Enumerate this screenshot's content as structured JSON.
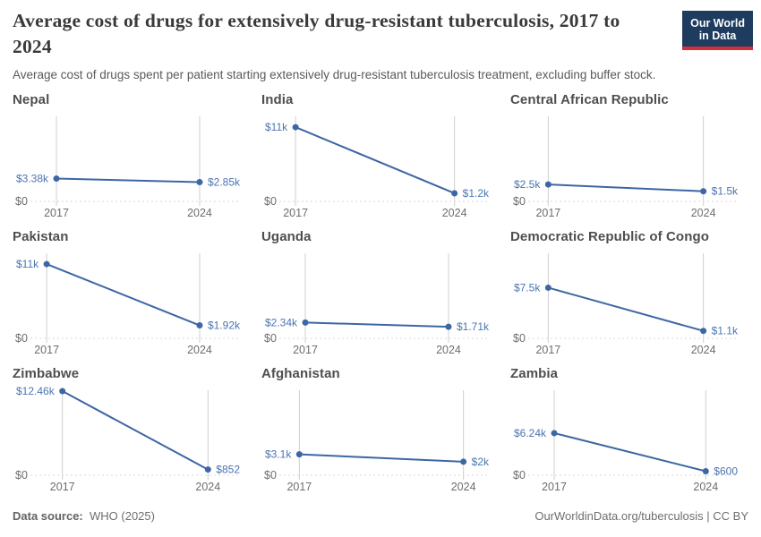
{
  "header": {
    "title": "Average cost of drugs for extensively drug-resistant tuberculosis, 2017 to 2024",
    "subtitle": "Average cost of drugs spent per patient starting extensively drug-resistant tuberculosis treatment, excluding buffer stock."
  },
  "logo": {
    "line1": "Our World",
    "line2": "in Data",
    "bg_color": "#1d3c60",
    "accent_color": "#cf3137"
  },
  "footer": {
    "source_label": "Data source:",
    "source": "WHO (2025)",
    "right": "OurWorldinData.org/tuberculosis | CC BY"
  },
  "chart_data": {
    "type": "line",
    "layout": "3x3 small multiples, shared y scale",
    "x": [
      2017,
      2024
    ],
    "x_tick_labels": [
      "2017",
      "2024"
    ],
    "ylim": [
      0,
      12600
    ],
    "zero_label": "$0",
    "grid": "vertical lines at each year, dashed zero line",
    "colors": {
      "line": "#3d66a4",
      "point": "#3d66a4",
      "value_label": "#4c74b2",
      "gridline": "#cfcfcf",
      "zero_line": "#d9d9d9",
      "axis_text": "#6d6d6d"
    },
    "facets": [
      {
        "country": "Nepal",
        "values": [
          3380,
          2850
        ],
        "labels": [
          "$3.38k",
          "$2.85k"
        ]
      },
      {
        "country": "India",
        "values": [
          11000,
          1200
        ],
        "labels": [
          "$11k",
          "$1.2k"
        ]
      },
      {
        "country": "Central African Republic",
        "values": [
          2500,
          1500
        ],
        "labels": [
          "$2.5k",
          "$1.5k"
        ]
      },
      {
        "country": "Pakistan",
        "values": [
          11000,
          1920
        ],
        "labels": [
          "$11k",
          "$1.92k"
        ]
      },
      {
        "country": "Uganda",
        "values": [
          2340,
          1710
        ],
        "labels": [
          "$2.34k",
          "$1.71k"
        ]
      },
      {
        "country": "Democratic Republic of Congo",
        "values": [
          7500,
          1100
        ],
        "labels": [
          "$7.5k",
          "$1.1k"
        ]
      },
      {
        "country": "Zimbabwe",
        "values": [
          12460,
          852
        ],
        "labels": [
          "$12.46k",
          "$852"
        ]
      },
      {
        "country": "Afghanistan",
        "values": [
          3100,
          2000
        ],
        "labels": [
          "$3.1k",
          "$2k"
        ]
      },
      {
        "country": "Zambia",
        "values": [
          6240,
          600
        ],
        "labels": [
          "$6.24k",
          "$600"
        ]
      }
    ]
  }
}
